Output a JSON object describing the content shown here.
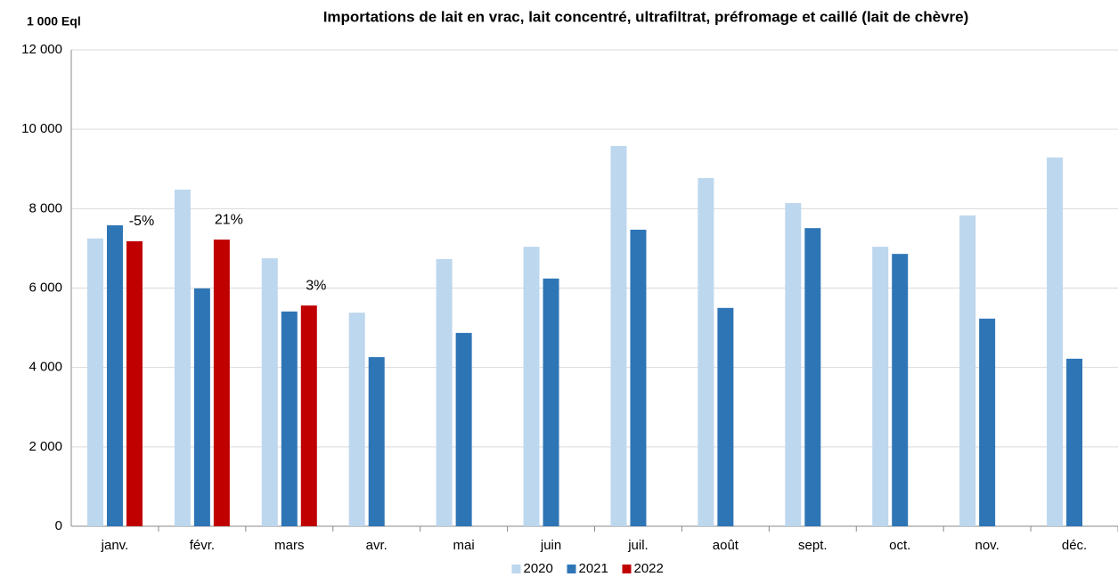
{
  "chart_data": {
    "type": "bar",
    "title": "Importations de lait en vrac, lait concentré, ultrafiltrat, préfromage et caillé (lait de chèvre)",
    "y_label": "1 000 Eql",
    "categories": [
      "janv.",
      "févr.",
      "mars",
      "avr.",
      "mai",
      "juin",
      "juil.",
      "août",
      "sept.",
      "oct.",
      "nov.",
      "déc."
    ],
    "series": [
      {
        "name": "2020",
        "color": "#bdd7ee",
        "values": [
          7250,
          8480,
          6750,
          5380,
          6730,
          7040,
          9580,
          8770,
          8140,
          7040,
          7830,
          9290
        ]
      },
      {
        "name": "2021",
        "color": "#2e75b6",
        "values": [
          7580,
          5990,
          5410,
          4260,
          4870,
          6240,
          7470,
          5500,
          7510,
          6860,
          5230,
          4220
        ]
      },
      {
        "name": "2022",
        "color": "#c00000",
        "values": [
          7180,
          7220,
          5560,
          null,
          null,
          null,
          null,
          null,
          null,
          null,
          null,
          null
        ]
      }
    ],
    "annotations": [
      "-5%",
      "21%",
      "3%"
    ],
    "ylim": [
      0,
      12000
    ],
    "yticks": [
      {
        "value": 0,
        "label": "0"
      },
      {
        "value": 2000,
        "label": "2 000"
      },
      {
        "value": 4000,
        "label": "4 000"
      },
      {
        "value": 6000,
        "label": "6 000"
      },
      {
        "value": 8000,
        "label": "8 000"
      },
      {
        "value": 10000,
        "label": "10 000"
      },
      {
        "value": 12000,
        "label": "12 000"
      }
    ],
    "grid": true,
    "legend": "bottom"
  }
}
